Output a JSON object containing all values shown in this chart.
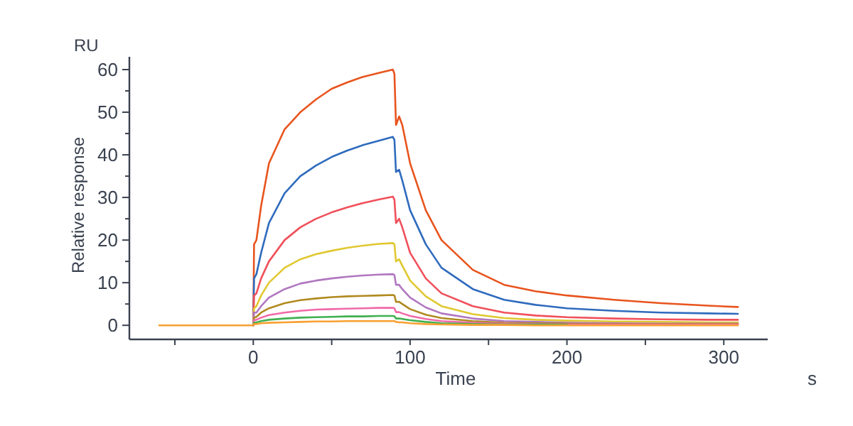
{
  "chart_data": {
    "type": "line",
    "xlabel": "Time",
    "ylabel": "Relative response",
    "annotations": [
      "RU",
      "s"
    ],
    "x": [
      -60,
      -1,
      0,
      0.5,
      2,
      5,
      10,
      20,
      30,
      40,
      50,
      60,
      70,
      80,
      89,
      90,
      91,
      93,
      95,
      100,
      110,
      120,
      140,
      160,
      180,
      200,
      230,
      260,
      290,
      309
    ],
    "xlim": [
      -79,
      328
    ],
    "xticks": [
      {
        "value": -50,
        "label": null
      },
      0,
      {
        "value": 50,
        "label": null
      },
      100,
      {
        "value": 150,
        "label": null
      },
      200,
      {
        "value": 250,
        "label": null
      },
      300
    ],
    "ylim": [
      -3.3,
      63
    ],
    "yticks": [
      0,
      {
        "value": 5,
        "label": null
      },
      10,
      {
        "value": 15,
        "label": null
      },
      20,
      {
        "value": 25,
        "label": null
      },
      30,
      {
        "value": 35,
        "label": null
      },
      40,
      {
        "value": 45,
        "label": null
      },
      50,
      {
        "value": 55,
        "label": null
      },
      60
    ],
    "grid": false,
    "marker": "none",
    "line_style": "solid",
    "series": [
      {
        "color": "#e8541e",
        "values": [
          null,
          null,
          0,
          19,
          20,
          28,
          38,
          46,
          50,
          53,
          55.5,
          57,
          58.3,
          59.2,
          60,
          59,
          47,
          49,
          47,
          38,
          27,
          20,
          13,
          9.5,
          8,
          7,
          6,
          5.2,
          4.6,
          4.3
        ]
      },
      {
        "color": "#2f6bbd",
        "values": [
          null,
          null,
          0,
          11,
          12,
          17,
          24,
          31,
          35,
          37.5,
          39.5,
          41,
          42.3,
          43.3,
          44.2,
          43.5,
          36,
          36.5,
          34,
          27,
          19,
          13.5,
          8.5,
          6,
          4.8,
          4,
          3.4,
          3,
          2.8,
          2.7
        ]
      },
      {
        "color": "#f0505a",
        "values": [
          null,
          null,
          0,
          7,
          7.5,
          11,
          15,
          20,
          23,
          25,
          26.5,
          27.7,
          28.7,
          29.5,
          30.2,
          29.5,
          24,
          25,
          23,
          17,
          11,
          7.5,
          4.5,
          3,
          2.3,
          1.9,
          1.6,
          1.4,
          1.3,
          1.3
        ]
      },
      {
        "color": "#e0c830",
        "values": [
          null,
          null,
          0,
          4,
          4.5,
          7,
          10,
          13.5,
          15.5,
          16.7,
          17.5,
          18.2,
          18.7,
          19.1,
          19.3,
          19,
          15,
          15.5,
          14,
          10.5,
          6.8,
          4.5,
          2.6,
          1.7,
          1.3,
          1.1,
          0.9,
          0.8,
          0.7,
          0.7
        ]
      },
      {
        "color": "#b077c0",
        "values": [
          null,
          null,
          0,
          3,
          3,
          4.5,
          6.5,
          8.5,
          9.8,
          10.5,
          11,
          11.4,
          11.7,
          11.9,
          12,
          11.8,
          9.5,
          9.5,
          8.5,
          6.5,
          4.2,
          2.8,
          1.6,
          1,
          0.8,
          0.6,
          0.5,
          0.4,
          0.4,
          0.4
        ]
      },
      {
        "color": "#b08a20",
        "values": [
          null,
          null,
          0,
          1.8,
          2,
          3,
          4,
          5.2,
          5.9,
          6.3,
          6.6,
          6.8,
          6.9,
          7,
          7.1,
          7,
          5.5,
          5.5,
          5,
          3.8,
          2.5,
          1.7,
          1,
          0.6,
          0.5,
          0.4,
          0.3,
          0.3,
          0.3,
          0.3
        ]
      },
      {
        "color": "#f06aa8",
        "values": [
          null,
          null,
          0,
          1.2,
          1.3,
          1.8,
          2.4,
          3,
          3.4,
          3.7,
          3.8,
          3.9,
          4,
          4.1,
          4.1,
          4,
          3.1,
          3.1,
          2.8,
          2.2,
          1.5,
          1,
          0.6,
          0.4,
          0.3,
          0.2,
          0.2,
          0.2,
          0.2,
          0.2
        ]
      },
      {
        "color": "#40b050",
        "values": [
          null,
          null,
          0,
          0.6,
          0.7,
          1,
          1.3,
          1.6,
          1.8,
          1.9,
          2,
          2.1,
          2.1,
          2.2,
          2.2,
          2.1,
          1.6,
          1.6,
          1.5,
          1.2,
          0.8,
          0.5,
          0.3,
          0.2,
          0.2,
          0.1,
          null,
          null,
          null,
          null
        ]
      },
      {
        "color": "#f8a030",
        "values": [
          0,
          0,
          0,
          0.3,
          0.3,
          0.5,
          0.6,
          0.7,
          0.8,
          0.9,
          0.9,
          1,
          1,
          1,
          1,
          1,
          0.8,
          0.7,
          0.7,
          0.5,
          0.3,
          0.2,
          0.1,
          0.1,
          0,
          0,
          0,
          0,
          0,
          0
        ]
      }
    ]
  }
}
